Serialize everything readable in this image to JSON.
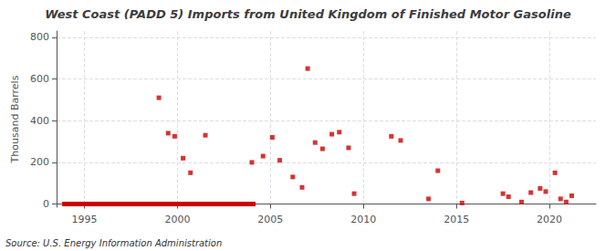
{
  "chart_data": {
    "type": "scatter",
    "title": "West Coast (PADD 5) Imports from United Kingdom of Finished Motor Gasoline",
    "ylabel": "Thousand Barrels",
    "annotations": [
      "Source: U.S. Energy Information Administration"
    ],
    "xlim": [
      1993.5,
      2022.5
    ],
    "ylim": [
      -15,
      830
    ],
    "xticks": [
      1995,
      2000,
      2005,
      2010,
      2015,
      2020
    ],
    "yticks": [
      0,
      200,
      400,
      600,
      800
    ],
    "grid": true,
    "series": [
      {
        "type": "scatter",
        "color": "#cc0000",
        "marker": "square",
        "x": [
          1999.0,
          1999.5,
          1999.85,
          2000.3,
          2000.7,
          2001.5,
          2004.0,
          2004.6,
          2005.1,
          2005.5,
          2006.2,
          2006.7,
          2007.0,
          2007.4,
          2007.8,
          2008.3,
          2008.7,
          2009.2,
          2009.5,
          2011.5,
          2012.0,
          2013.5,
          2014.0,
          2015.3,
          2017.5,
          2017.8,
          2018.5,
          2019.0,
          2019.5,
          2019.8,
          2020.3,
          2020.6,
          2020.9,
          2021.2
        ],
        "values": [
          510,
          340,
          325,
          220,
          150,
          330,
          200,
          230,
          320,
          210,
          130,
          80,
          650,
          295,
          265,
          335,
          345,
          270,
          50,
          325,
          305,
          25,
          160,
          5,
          50,
          35,
          10,
          55,
          75,
          60,
          150,
          25,
          10,
          40
        ]
      },
      {
        "type": "line",
        "color": "#cc0000",
        "line_style": "solid",
        "x": [
          1993.8,
          2004.2
        ],
        "values": [
          0,
          0
        ]
      }
    ]
  }
}
